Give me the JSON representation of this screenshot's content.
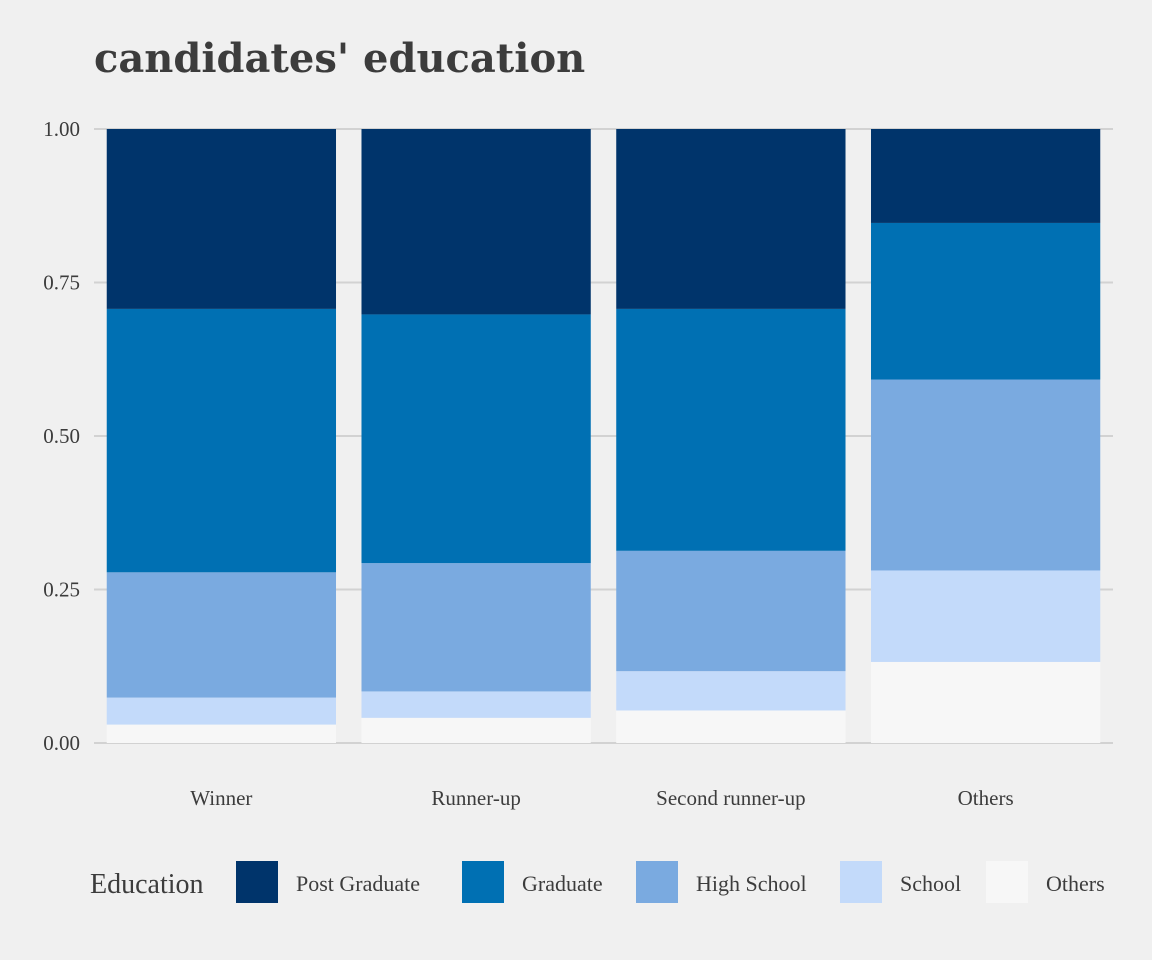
{
  "chart_data": {
    "type": "bar",
    "stacked": true,
    "title": "candidates' education",
    "xlabel": "",
    "ylabel": "",
    "ylim": [
      0,
      1
    ],
    "y_ticks": [
      "0.00",
      "0.25",
      "0.50",
      "0.75",
      "1.00"
    ],
    "categories": [
      "Winner",
      "Runner-up",
      "Second runner-up",
      "Others"
    ],
    "series": [
      {
        "name": "Others",
        "color": "#f7f7f7",
        "values": [
          0.03,
          0.041,
          0.053,
          0.132
        ]
      },
      {
        "name": "School",
        "color": "#c3dafa",
        "values": [
          0.044,
          0.043,
          0.064,
          0.149
        ]
      },
      {
        "name": "High School",
        "color": "#7aaae0",
        "values": [
          0.204,
          0.209,
          0.196,
          0.311
        ]
      },
      {
        "name": "Graduate",
        "color": "#0070b3",
        "values": [
          0.429,
          0.405,
          0.394,
          0.255
        ]
      },
      {
        "name": "Post Graduate",
        "color": "#00346b",
        "values": [
          0.293,
          0.302,
          0.293,
          0.153
        ]
      }
    ],
    "grid": true,
    "legend": {
      "position": "bottom",
      "title": "Education",
      "order": [
        "Post Graduate",
        "Graduate",
        "High School",
        "School",
        "Others"
      ]
    }
  }
}
